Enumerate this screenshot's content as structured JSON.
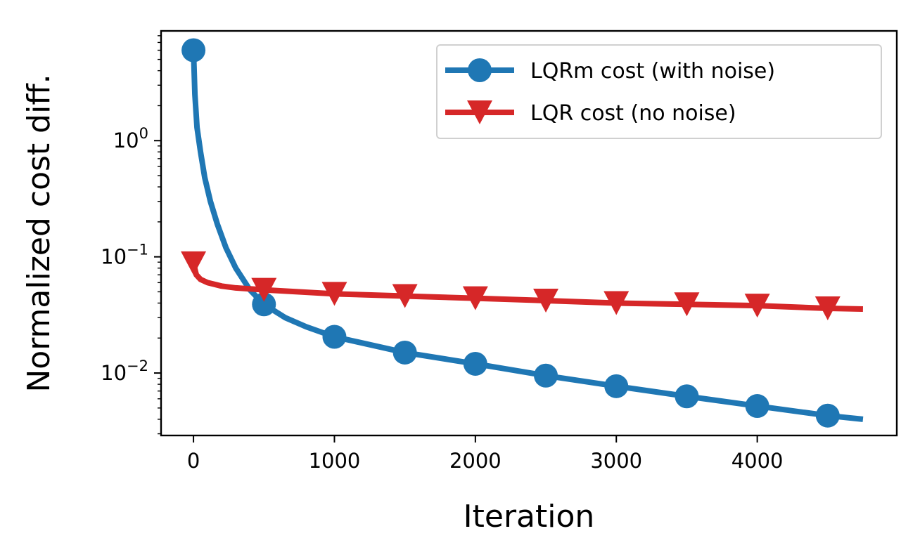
{
  "chart_data": {
    "type": "line",
    "xlabel": "Iteration",
    "ylabel": "Normalized cost diff.",
    "xscale": "linear",
    "yscale": "log",
    "xlim": [
      -230,
      4990
    ],
    "ylim": [
      0.0029,
      8.8
    ],
    "xticks": [
      0,
      1000,
      2000,
      3000,
      4000
    ],
    "yticks": [
      {
        "value": 0.01,
        "base": "10",
        "exp": "−2"
      },
      {
        "value": 0.1,
        "base": "10",
        "exp": "−1"
      },
      {
        "value": 1,
        "base": "10",
        "exp": "0"
      }
    ],
    "grid": false,
    "legend_position": "top-right",
    "series": [
      {
        "name": "LQRm cost (with noise)",
        "color": "#1f77b4",
        "marker": "circle",
        "x": [
          0,
          10,
          25,
          50,
          80,
          120,
          170,
          230,
          300,
          400,
          500,
          650,
          800,
          1000,
          1500,
          2000,
          2500,
          3000,
          3500,
          4000,
          4500,
          4750
        ],
        "y": [
          6.0,
          2.5,
          1.3,
          0.8,
          0.48,
          0.3,
          0.19,
          0.12,
          0.08,
          0.052,
          0.039,
          0.03,
          0.025,
          0.0205,
          0.015,
          0.012,
          0.0095,
          0.0077,
          0.0063,
          0.0052,
          0.0043,
          0.004
        ],
        "marker_x": [
          0,
          500,
          1000,
          1500,
          2000,
          2500,
          3000,
          3500,
          4000,
          4500
        ]
      },
      {
        "name": "LQR cost (no noise)",
        "color": "#d62728",
        "marker": "triangle-down",
        "x": [
          0,
          20,
          50,
          100,
          200,
          300,
          500,
          1000,
          1500,
          2000,
          2500,
          3000,
          3500,
          4000,
          4500,
          4750
        ],
        "y": [
          0.088,
          0.07,
          0.064,
          0.06,
          0.056,
          0.054,
          0.052,
          0.048,
          0.046,
          0.044,
          0.042,
          0.04,
          0.039,
          0.038,
          0.036,
          0.0355
        ],
        "marker_x": [
          0,
          500,
          1000,
          1500,
          2000,
          2500,
          3000,
          3500,
          4000,
          4500
        ]
      }
    ]
  }
}
